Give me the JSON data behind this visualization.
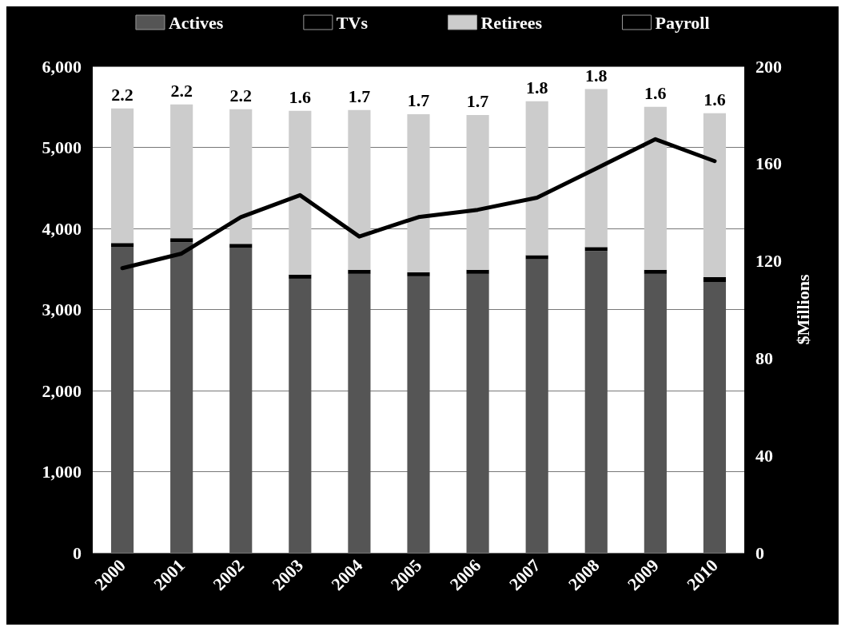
{
  "chart_data": {
    "type": "bar",
    "stacked": true,
    "categories": [
      "2000",
      "2001",
      "2002",
      "2003",
      "2004",
      "2005",
      "2006",
      "2007",
      "2008",
      "2009",
      "2010"
    ],
    "series": [
      {
        "name": "Actives",
        "color": "#555555",
        "values": [
          3770,
          3830,
          3760,
          3380,
          3440,
          3410,
          3440,
          3620,
          3720,
          3440,
          3340
        ]
      },
      {
        "name": "TVs",
        "color": "#000000",
        "values": [
          50,
          50,
          50,
          50,
          50,
          50,
          50,
          50,
          50,
          50,
          60
        ]
      },
      {
        "name": "Retirees",
        "color": "#cccccc",
        "values": [
          1660,
          1650,
          1660,
          2020,
          1970,
          1950,
          1910,
          1900,
          1950,
          2010,
          2020
        ]
      },
      {
        "name": "Payroll",
        "type": "line",
        "axis": "y2",
        "color": "#000000",
        "values": [
          117,
          123,
          138,
          147,
          130,
          138,
          141,
          146,
          158,
          170,
          161
        ]
      }
    ],
    "annotations": [
      {
        "text": "2.2",
        "x": "2000",
        "y": 5480
      },
      {
        "text": "2.2",
        "x": "2001",
        "y": 5530
      },
      {
        "text": "2.2",
        "x": "2002",
        "y": 5470
      },
      {
        "text": "1.6",
        "x": "2003",
        "y": 5450
      },
      {
        "text": "1.7",
        "x": "2004",
        "y": 5460
      },
      {
        "text": "1.7",
        "x": "2005",
        "y": 5410
      },
      {
        "text": "1.7",
        "x": "2006",
        "y": 5400
      },
      {
        "text": "1.8",
        "x": "2007",
        "y": 5570
      },
      {
        "text": "1.8",
        "x": "2008",
        "y": 5720
      },
      {
        "text": "1.6",
        "x": "2009",
        "y": 5500
      },
      {
        "text": "1.6",
        "x": "2010",
        "y": 5420
      }
    ],
    "ylim": [
      0,
      6000
    ],
    "yticks": [
      0,
      {
        "value": 1000,
        "label": "1,000"
      },
      {
        "value": 2000,
        "label": "2,000"
      },
      {
        "value": 3000,
        "label": "3,000"
      },
      {
        "value": 4000,
        "label": "4,000"
      },
      {
        "value": 5000,
        "label": "5,000"
      },
      {
        "value": 6000,
        "label": "6,000"
      }
    ],
    "y2lim": [
      0,
      200
    ],
    "y2ticks": [
      0,
      40,
      80,
      120,
      160,
      200
    ],
    "y2label": "$Millions",
    "grid": "y",
    "legend": "top",
    "marker": "none",
    "line_style": "solid"
  }
}
